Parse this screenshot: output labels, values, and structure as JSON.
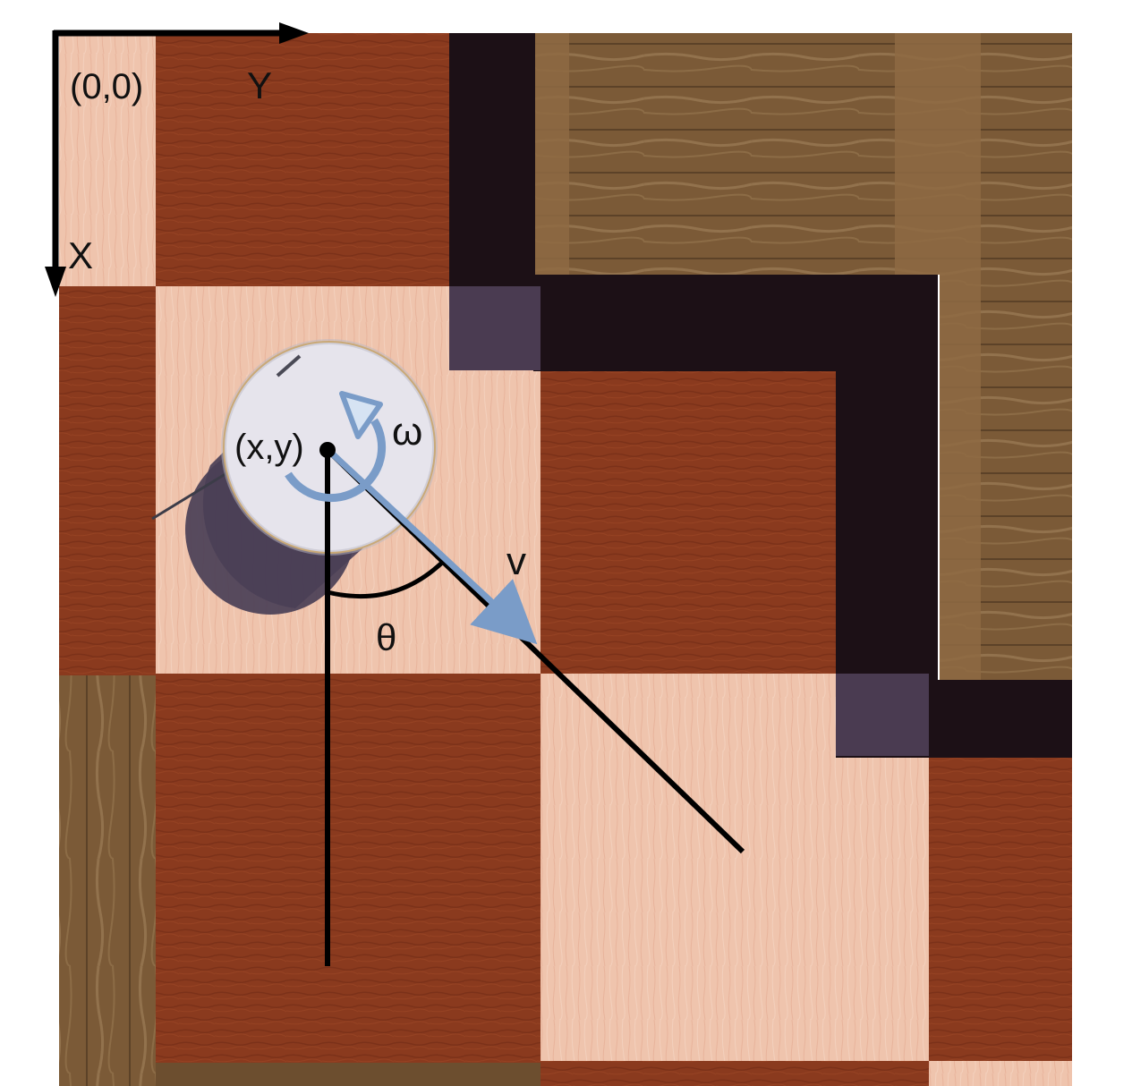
{
  "labels": {
    "origin": "(0,0)",
    "x_axis": "X",
    "y_axis": "Y",
    "position": "(x,y)",
    "angular_velocity": "ω",
    "linear_velocity": "v",
    "heading_angle": "θ"
  },
  "colors": {
    "dark_wood": "#8a3a1e",
    "light_wood": "#efc4ad",
    "wall_shadow": "#1c1016",
    "crate_wood": "#7b5a37",
    "robot_body": "#e6e4ec",
    "vector_blue": "#7a9cc8",
    "axis_black": "#000000"
  }
}
